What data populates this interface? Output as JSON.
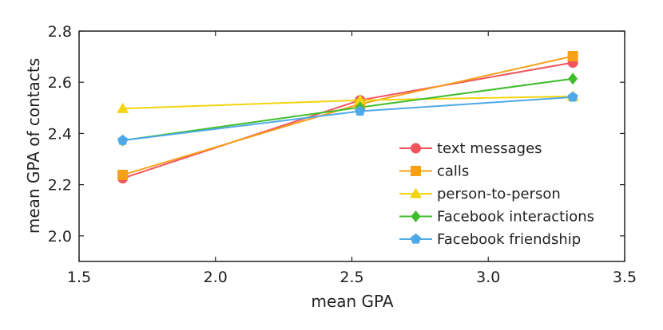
{
  "chart_data": {
    "type": "line",
    "xlabel": "mean GPA",
    "ylabel": "mean GPA of contacts",
    "xlim": [
      1.5,
      3.5
    ],
    "ylim": [
      1.9,
      2.8
    ],
    "xticks": [
      "1.5",
      "2.0",
      "2.5",
      "3.0",
      "3.5"
    ],
    "yticks": [
      "2.0",
      "2.2",
      "2.4",
      "2.6",
      "2.8"
    ],
    "grid": false,
    "legend_position": "bottom-right",
    "x": [
      1.66,
      2.53,
      3.31
    ],
    "series": [
      {
        "name": "text messages",
        "color": "#f2545b",
        "marker": "circle",
        "values": [
          2.225,
          2.53,
          2.677
        ]
      },
      {
        "name": "calls",
        "color": "#f6a01a",
        "marker": "square",
        "values": [
          2.238,
          2.515,
          2.702
        ]
      },
      {
        "name": "person-to-person",
        "color": "#f2d40f",
        "marker": "triangle",
        "values": [
          2.497,
          2.53,
          2.545
        ]
      },
      {
        "name": "Facebook interactions",
        "color": "#3fbd2b",
        "marker": "diamond",
        "values": [
          2.373,
          2.502,
          2.614
        ]
      },
      {
        "name": "Facebook friendship",
        "color": "#4fa9e8",
        "marker": "pentagon",
        "values": [
          2.373,
          2.487,
          2.542
        ]
      }
    ]
  }
}
